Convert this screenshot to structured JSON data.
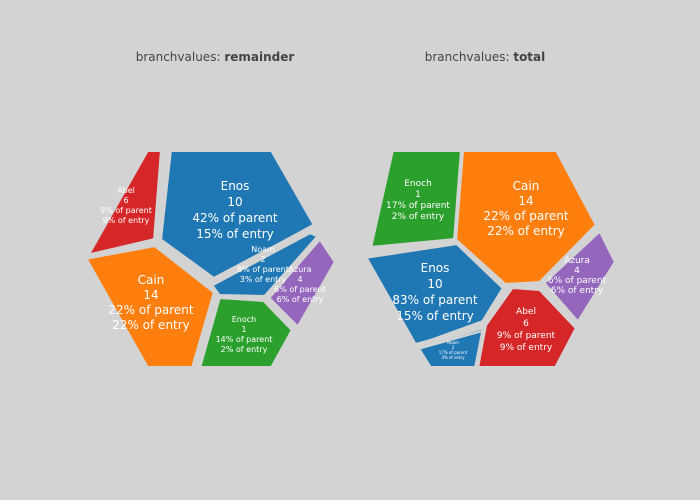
{
  "chart_data": [
    {
      "type": "voronoi-treemap",
      "title_prefix": "branchvalues: ",
      "title_emphasis": "remainder",
      "branchvalues": "remainder",
      "cells": [
        {
          "label": "Enos",
          "value": 10,
          "pct_parent": "42% of parent",
          "pct_entry": "15% of entry",
          "color": "#1f77b4"
        },
        {
          "label": "Cain",
          "value": 14,
          "pct_parent": "22% of parent",
          "pct_entry": "22% of entry",
          "color": "#ff7f0e"
        },
        {
          "label": "Abel",
          "value": 6,
          "pct_parent": "9% of parent",
          "pct_entry": "9% of entry",
          "color": "#d62728"
        },
        {
          "label": "Enoch",
          "value": 1,
          "pct_parent": "14% of parent",
          "pct_entry": "2% of entry",
          "color": "#2ca02c"
        },
        {
          "label": "Azura",
          "value": 4,
          "pct_parent": "6% of parent",
          "pct_entry": "6% of entry",
          "color": "#9467bd"
        },
        {
          "label": "Noam",
          "value": 2,
          "pct_parent": "8% of parent",
          "pct_entry": "3% of entry",
          "color": "#1f77b4"
        }
      ]
    },
    {
      "type": "voronoi-treemap",
      "title_prefix": "branchvalues: ",
      "title_emphasis": "total",
      "branchvalues": "total",
      "cells": [
        {
          "label": "Enos",
          "value": 10,
          "pct_parent": "83% of parent",
          "pct_entry": "15% of entry",
          "color": "#1f77b4"
        },
        {
          "label": "Cain",
          "value": 14,
          "pct_parent": "22% of parent",
          "pct_entry": "22% of entry",
          "color": "#ff7f0e"
        },
        {
          "label": "Abel",
          "value": 6,
          "pct_parent": "9% of parent",
          "pct_entry": "9% of entry",
          "color": "#d62728"
        },
        {
          "label": "Enoch",
          "value": 1,
          "pct_parent": "17% of parent",
          "pct_entry": "2% of entry",
          "color": "#2ca02c"
        },
        {
          "label": "Azura",
          "value": 4,
          "pct_parent": "6% of parent",
          "pct_entry": "6% of entry",
          "color": "#9467bd"
        },
        {
          "label": "Noam",
          "value": 2,
          "pct_parent": "17% of parent",
          "pct_entry": "3% of entry",
          "color": "#1f77b4"
        }
      ]
    }
  ]
}
